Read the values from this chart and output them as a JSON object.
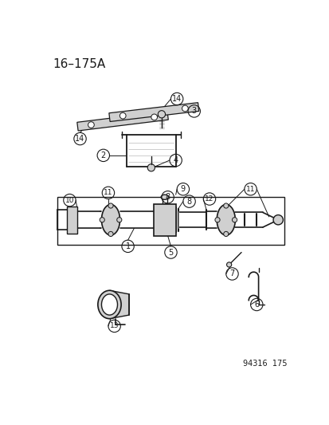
{
  "title": "16–175A",
  "watermark": "94316  175",
  "bg_color": "#ffffff",
  "fg_color": "#1a1a1a",
  "title_fontsize": 11,
  "wm_fontsize": 7
}
